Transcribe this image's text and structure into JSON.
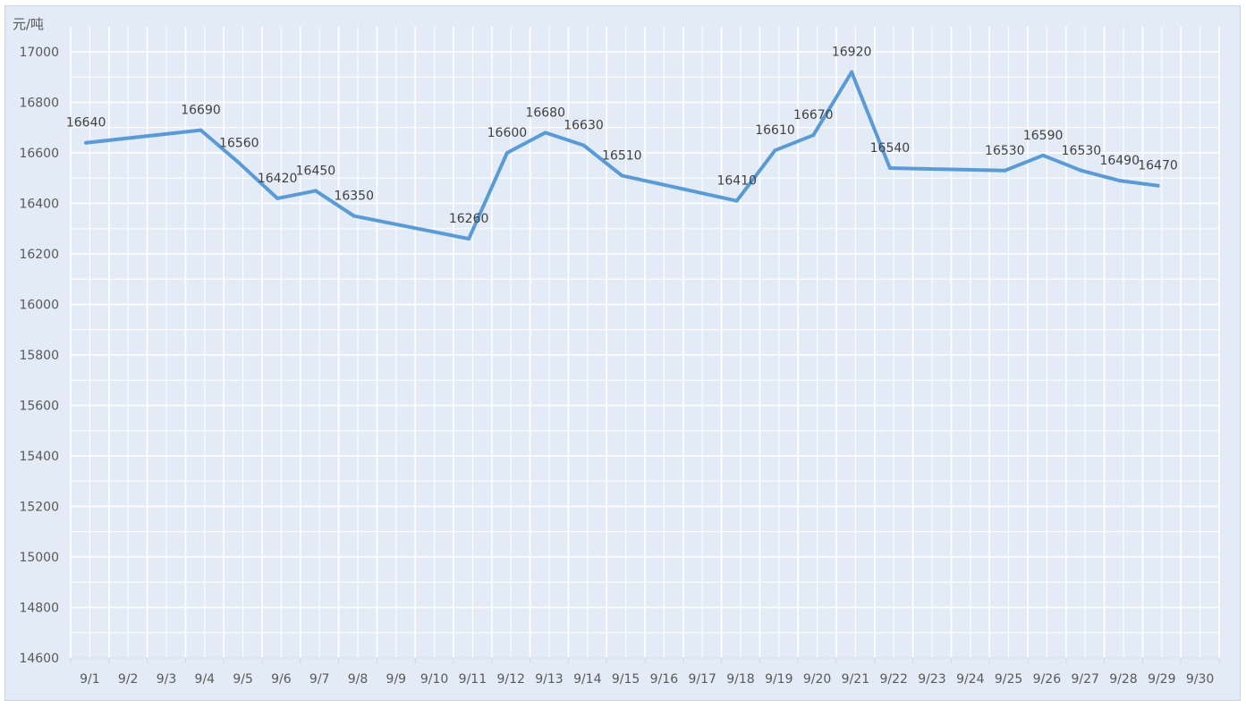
{
  "chart_data": {
    "type": "line",
    "ylabel": "元/吨",
    "categories": [
      "9/1",
      "9/2",
      "9/3",
      "9/4",
      "9/5",
      "9/6",
      "9/7",
      "9/8",
      "9/9",
      "9/10",
      "9/11",
      "9/12",
      "9/13",
      "9/14",
      "9/15",
      "9/16",
      "9/17",
      "9/18",
      "9/19",
      "9/20",
      "9/21",
      "9/22",
      "9/23",
      "9/24",
      "9/25",
      "9/26",
      "9/27",
      "9/28",
      "9/29",
      "9/30"
    ],
    "points": [
      {
        "x": "9/1",
        "offset": 0.4,
        "value": 16640
      },
      {
        "x": "9/4",
        "offset": 0.4,
        "value": 16690
      },
      {
        "x": "9/5",
        "offset": 0.4,
        "value": 16560
      },
      {
        "x": "9/6",
        "offset": 0.4,
        "value": 16420
      },
      {
        "x": "9/7",
        "offset": 0.4,
        "value": 16450
      },
      {
        "x": "9/8",
        "offset": 0.4,
        "value": 16350
      },
      {
        "x": "9/11",
        "offset": 0.4,
        "value": 16260
      },
      {
        "x": "9/12",
        "offset": 0.4,
        "value": 16600
      },
      {
        "x": "9/13",
        "offset": 0.4,
        "value": 16680
      },
      {
        "x": "9/14",
        "offset": 0.4,
        "value": 16630
      },
      {
        "x": "9/15",
        "offset": 0.4,
        "value": 16510
      },
      {
        "x": "9/18",
        "offset": 0.4,
        "value": 16410
      },
      {
        "x": "9/19",
        "offset": 0.4,
        "value": 16610
      },
      {
        "x": "9/20",
        "offset": 0.4,
        "value": 16670
      },
      {
        "x": "9/21",
        "offset": 0.4,
        "value": 16920
      },
      {
        "x": "9/22",
        "offset": 0.4,
        "value": 16540
      },
      {
        "x": "9/25",
        "offset": 0.4,
        "value": 16530
      },
      {
        "x": "9/26",
        "offset": 0.4,
        "value": 16590
      },
      {
        "x": "9/27",
        "offset": 0.4,
        "value": 16530
      },
      {
        "x": "9/28",
        "offset": 0.4,
        "value": 16490
      },
      {
        "x": "9/29",
        "offset": 0.4,
        "value": 16470
      }
    ],
    "ylim": [
      14600,
      17000
    ],
    "yticks": [
      14600,
      14800,
      15000,
      15200,
      15400,
      15600,
      15800,
      16000,
      16200,
      16400,
      16600,
      16800,
      17000
    ],
    "grid": true,
    "legend": "none",
    "colors": {
      "line": "#5b9bd5",
      "plot_background": "#e3ecf6",
      "grid": "#ffffff",
      "text": "#595959"
    }
  }
}
